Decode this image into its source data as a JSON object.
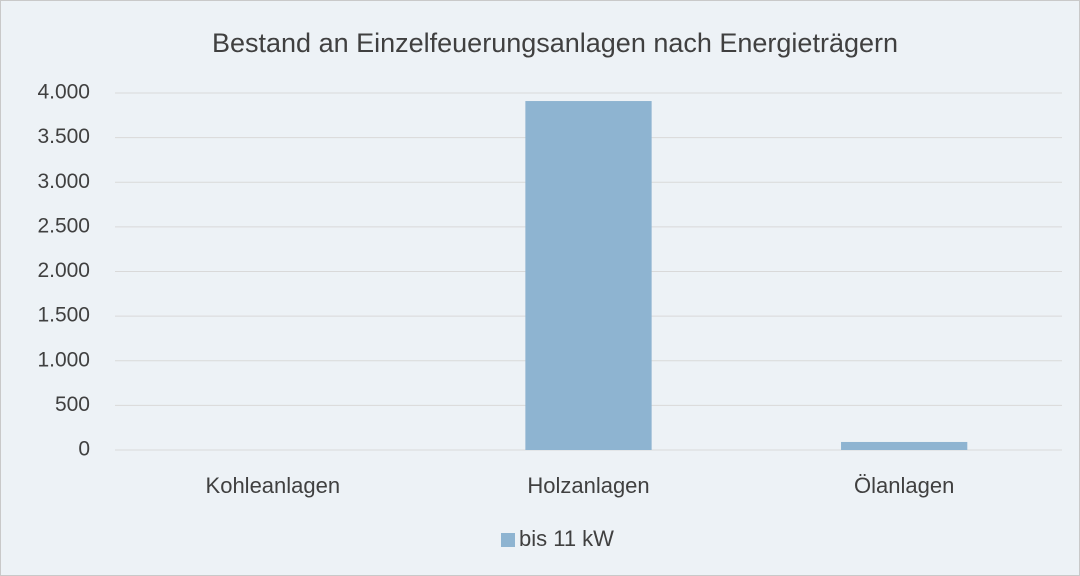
{
  "chart_data": {
    "type": "bar",
    "title": "Bestand an Einzelfeuerungsanlagen nach Energieträgern",
    "categories": [
      "Kohleanlagen",
      "Holzanlagen",
      "Ölanlagen"
    ],
    "series": [
      {
        "name": "bis 11 kW",
        "color": "#8eb4d1",
        "values": [
          0,
          3910,
          90
        ]
      }
    ],
    "ylim": [
      0,
      4000
    ],
    "yticks": [
      0,
      500,
      {
        "value": 1000,
        "label": "1.000"
      },
      {
        "value": 1500,
        "label": "1.500"
      },
      {
        "value": 2000,
        "label": "2.000"
      },
      {
        "value": 2500,
        "label": "2.500"
      },
      {
        "value": 3000,
        "label": "3.000"
      },
      {
        "value": 3500,
        "label": "3.500"
      },
      {
        "value": 4000,
        "label": "4.000"
      }
    ],
    "grid": true,
    "legend": "bottom"
  }
}
